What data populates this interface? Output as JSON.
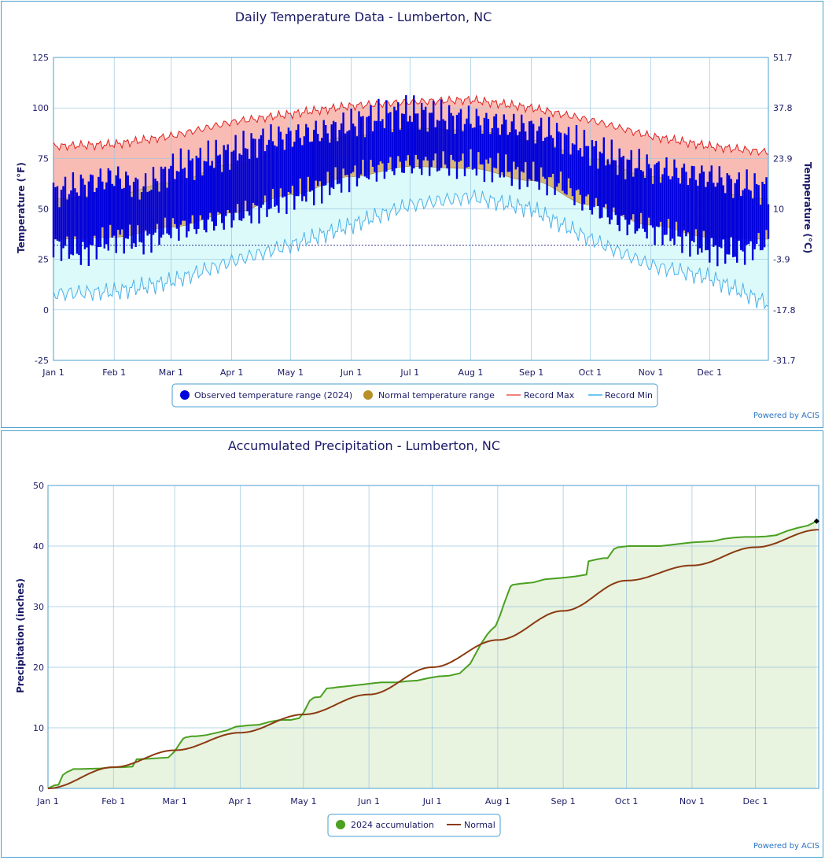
{
  "temperature_chart": {
    "title": "Daily Temperature Data - Lumberton, NC",
    "left_axis_label": "Temperature (°F)",
    "right_axis_label": "Temperature (°C)",
    "credit": "Powered by ACIS",
    "legend": [
      {
        "label": "Observed temperature range (2024)",
        "color": "#0000dd",
        "symbol": "dot"
      },
      {
        "label": "Normal temperature range",
        "color": "#b8902a",
        "symbol": "dot"
      },
      {
        "label": "Record Max",
        "color": "#f08080",
        "symbol": "line"
      },
      {
        "label": "Record Min",
        "color": "#6ec6f0",
        "symbol": "line"
      }
    ]
  },
  "precip_chart": {
    "title": "Accumulated Precipitation - Lumberton, NC",
    "y_axis_label": "Precipitation (inches)",
    "credit": "Powered by ACIS",
    "legend": [
      {
        "label": "2024 accumulation",
        "color": "#4aa020",
        "symbol": "dot"
      },
      {
        "label": "Normal",
        "color": "#8b3a10",
        "symbol": "line"
      }
    ]
  },
  "chart_data": [
    {
      "type": "area",
      "title": "Daily Temperature Data - Lumberton, NC",
      "xlabel": "",
      "ylabel": "Temperature (°F)",
      "y2label": "Temperature (°C)",
      "ylim": [
        -25,
        125
      ],
      "y_ticks": [
        -25,
        0,
        25,
        50,
        75,
        100,
        125
      ],
      "y2_ticks": [
        "-31.7",
        "-17.8",
        "-3.9",
        "10",
        "23.9",
        "37.8",
        "51.7"
      ],
      "x_ticks": [
        "Jan 1",
        "Feb 1",
        "Mar 1",
        "Apr 1",
        "May 1",
        "Jun 1",
        "Jul 1",
        "Aug 1",
        "Sep 1",
        "Oct 1",
        "Nov 1",
        "Dec 1"
      ],
      "x_tick_days": [
        0,
        31,
        60,
        91,
        121,
        152,
        182,
        213,
        244,
        274,
        305,
        335
      ],
      "days_in_year": 366,
      "freezing_line": 32,
      "grid": true,
      "legend_position": "bottom",
      "series": [
        {
          "name": "Observed temperature range (2024)",
          "kind": "daily_bars",
          "color": "#0000dd",
          "sample_days": [
            0,
            15,
            31,
            46,
            60,
            75,
            91,
            106,
            121,
            136,
            152,
            167,
            182,
            197,
            213,
            228,
            244,
            259,
            274,
            289,
            305,
            320,
            335,
            350,
            365
          ],
          "sample_high": [
            58,
            62,
            66,
            60,
            70,
            74,
            78,
            84,
            86,
            88,
            92,
            96,
            98,
            96,
            94,
            92,
            90,
            86,
            80,
            74,
            70,
            68,
            66,
            62,
            60
          ],
          "sample_low": [
            32,
            28,
            36,
            34,
            40,
            42,
            46,
            50,
            56,
            60,
            66,
            70,
            72,
            72,
            72,
            70,
            66,
            62,
            52,
            44,
            40,
            36,
            30,
            28,
            34
          ]
        },
        {
          "name": "Normal temperature range",
          "kind": "band",
          "color": "#b8902a",
          "month_days": [
            0,
            31,
            60,
            91,
            121,
            152,
            182,
            213,
            244,
            274,
            305,
            335,
            365
          ],
          "normal_high": [
            55,
            57,
            63,
            72,
            79,
            86,
            90,
            89,
            84,
            75,
            66,
            58,
            55
          ],
          "normal_low": [
            35,
            36,
            41,
            48,
            57,
            66,
            71,
            70,
            64,
            52,
            42,
            36,
            35
          ]
        },
        {
          "name": "Record Max",
          "kind": "line",
          "color": "#e02020",
          "month_days": [
            0,
            31,
            60,
            91,
            121,
            152,
            182,
            213,
            244,
            274,
            305,
            335,
            365
          ],
          "values": [
            81,
            82,
            86,
            93,
            97,
            101,
            103,
            104,
            100,
            94,
            86,
            81,
            78
          ]
        },
        {
          "name": "Record Min",
          "kind": "line",
          "color": "#4ab0e8",
          "month_days": [
            0,
            31,
            60,
            91,
            121,
            152,
            182,
            213,
            244,
            274,
            305,
            335,
            365
          ],
          "values": [
            8,
            9,
            14,
            24,
            32,
            42,
            52,
            56,
            50,
            35,
            22,
            16,
            3
          ]
        }
      ]
    },
    {
      "type": "line",
      "title": "Accumulated Precipitation - Lumberton, NC",
      "xlabel": "",
      "ylabel": "Precipitation (inches)",
      "ylim": [
        0,
        50
      ],
      "y_ticks": [
        0,
        10,
        20,
        30,
        40,
        50
      ],
      "x_ticks": [
        "Jan 1",
        "Feb 1",
        "Mar 1",
        "Apr 1",
        "May 1",
        "Jun 1",
        "Jul 1",
        "Aug 1",
        "Sep 1",
        "Oct 1",
        "Nov 1",
        "Dec 1"
      ],
      "x_tick_days": [
        0,
        31,
        60,
        91,
        121,
        152,
        182,
        213,
        244,
        274,
        305,
        335
      ],
      "days_in_year": 366,
      "grid": true,
      "legend_position": "bottom",
      "series": [
        {
          "name": "2024 accumulation",
          "color": "#4aa020",
          "days": [
            0,
            3,
            5,
            7,
            9,
            11,
            12,
            15,
            25,
            30,
            35,
            40,
            42,
            48,
            57,
            60,
            62,
            64,
            65,
            68,
            70,
            75,
            80,
            85,
            89,
            92,
            95,
            100,
            105,
            110,
            115,
            119,
            121,
            124,
            126,
            129,
            132,
            135,
            137,
            140,
            145,
            150,
            155,
            158,
            160,
            165,
            170,
            175,
            180,
            185,
            190,
            195,
            200,
            205,
            208,
            210,
            212,
            214,
            216,
            219,
            220,
            222,
            224,
            230,
            235,
            238,
            242,
            245,
            250,
            255,
            256,
            260,
            263,
            265,
            268,
            270,
            275,
            280,
            285,
            290,
            295,
            300,
            305,
            310,
            315,
            320,
            325,
            330,
            335,
            340,
            345,
            350,
            355,
            360,
            364
          ],
          "values": [
            0,
            0.5,
            0.6,
            2.2,
            2.7,
            3.0,
            3.2,
            3.2,
            3.3,
            3.5,
            3.5,
            3.6,
            4.8,
            4.9,
            5.1,
            6.1,
            7.2,
            8.2,
            8.4,
            8.6,
            8.6,
            8.8,
            9.2,
            9.6,
            10.2,
            10.3,
            10.4,
            10.5,
            11.0,
            11.3,
            11.3,
            11.6,
            12.5,
            14.5,
            15.0,
            15.1,
            16.5,
            16.6,
            16.7,
            16.8,
            17.0,
            17.2,
            17.4,
            17.5,
            17.5,
            17.5,
            17.7,
            17.8,
            18.2,
            18.5,
            18.6,
            19.0,
            20.6,
            23.8,
            25.4,
            26.2,
            26.8,
            28.5,
            30.5,
            33.3,
            33.6,
            33.7,
            33.8,
            34.0,
            34.5,
            34.6,
            34.7,
            34.8,
            35.0,
            35.3,
            37.5,
            37.8,
            38.0,
            38.0,
            39.5,
            39.8,
            40.0,
            40.0,
            40.0,
            40.0,
            40.2,
            40.4,
            40.6,
            40.7,
            40.8,
            41.2,
            41.4,
            41.5,
            41.5,
            41.6,
            41.8,
            42.5,
            43.0,
            43.4,
            44.1
          ]
        },
        {
          "name": "Normal",
          "color": "#8b3a10",
          "days": [
            0,
            31,
            60,
            91,
            121,
            152,
            182,
            213,
            244,
            274,
            305,
            335,
            365
          ],
          "values": [
            0,
            3.5,
            6.3,
            9.2,
            12.2,
            15.5,
            20.0,
            24.5,
            29.3,
            34.3,
            36.8,
            39.8,
            42.7
          ]
        }
      ]
    }
  ]
}
